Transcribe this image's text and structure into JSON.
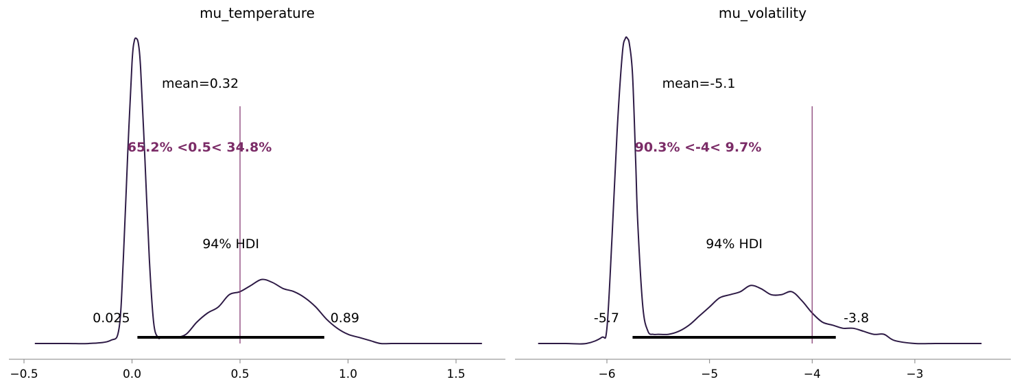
{
  "chart_data": [
    {
      "type": "density",
      "title": "mu_temperature",
      "xlim": [
        -0.5,
        1.65
      ],
      "ylim": [
        0,
        1
      ],
      "xticks": [
        -0.5,
        0.0,
        0.5,
        1.0,
        1.5
      ],
      "xtick_labels": [
        "−0.5",
        "0.0",
        "0.5",
        "1.0",
        "1.5"
      ],
      "mean_label": "mean=0.32",
      "hdi_label": "94% HDI",
      "hdi": [
        0.025,
        0.89
      ],
      "hdi_low_label": "0.025",
      "hdi_high_label": "0.89",
      "ref_val": 0.5,
      "ref_label": "65.2% <0.5< 34.8%",
      "line_color": "#2d1a45",
      "ref_color": "#7b2c67",
      "x": [
        -0.45,
        -0.3,
        -0.2,
        -0.1,
        -0.06,
        -0.04,
        -0.02,
        0.0,
        0.01,
        0.02,
        0.03,
        0.04,
        0.06,
        0.08,
        0.1,
        0.12,
        0.14,
        0.2,
        0.25,
        0.3,
        0.35,
        0.4,
        0.45,
        0.5,
        0.55,
        0.6,
        0.65,
        0.7,
        0.75,
        0.8,
        0.85,
        0.9,
        0.95,
        1.0,
        1.05,
        1.1,
        1.15,
        1.2,
        1.3,
        1.4,
        1.5,
        1.62
      ],
      "y": [
        0.0,
        0.0,
        0.0,
        0.01,
        0.05,
        0.28,
        0.62,
        0.92,
        0.99,
        1.0,
        0.98,
        0.9,
        0.6,
        0.28,
        0.07,
        0.02,
        0.02,
        0.02,
        0.03,
        0.07,
        0.1,
        0.12,
        0.16,
        0.17,
        0.19,
        0.21,
        0.2,
        0.18,
        0.17,
        0.15,
        0.12,
        0.08,
        0.05,
        0.03,
        0.02,
        0.01,
        0.0,
        0.0,
        0.0,
        0.0,
        0.0,
        0.0
      ]
    },
    {
      "type": "density",
      "title": "mu_volatility",
      "xlim": [
        -6.7,
        -2.2
      ],
      "ylim": [
        0,
        1
      ],
      "xticks": [
        -6,
        -5,
        -4,
        -3
      ],
      "xtick_labels": [
        "−6",
        "−5",
        "−4",
        "−3"
      ],
      "mean_label": "mean=-5.1",
      "hdi_label": "94% HDI",
      "hdi": [
        -5.75,
        -3.77
      ],
      "hdi_low_label": "-5.7",
      "hdi_high_label": "-3.8",
      "ref_val": -4,
      "ref_label": "90.3% <-4< 9.7%",
      "line_color": "#2d1a45",
      "ref_color": "#7b2c67",
      "x": [
        -6.67,
        -6.4,
        -6.2,
        -6.05,
        -6.0,
        -5.95,
        -5.9,
        -5.85,
        -5.82,
        -5.8,
        -5.78,
        -5.75,
        -5.72,
        -5.7,
        -5.65,
        -5.6,
        -5.55,
        -5.5,
        -5.4,
        -5.3,
        -5.2,
        -5.1,
        -5.0,
        -4.9,
        -4.8,
        -4.7,
        -4.6,
        -4.5,
        -4.4,
        -4.3,
        -4.2,
        -4.1,
        -4.0,
        -3.9,
        -3.8,
        -3.7,
        -3.6,
        -3.5,
        -3.4,
        -3.3,
        -3.2,
        -3.0,
        -2.8,
        -2.6,
        -2.35
      ],
      "y": [
        0.0,
        0.0,
        0.0,
        0.02,
        0.05,
        0.35,
        0.7,
        0.95,
        1.0,
        1.0,
        0.98,
        0.88,
        0.6,
        0.4,
        0.12,
        0.04,
        0.03,
        0.03,
        0.03,
        0.04,
        0.06,
        0.09,
        0.12,
        0.15,
        0.16,
        0.17,
        0.19,
        0.18,
        0.16,
        0.16,
        0.17,
        0.14,
        0.1,
        0.07,
        0.06,
        0.05,
        0.05,
        0.04,
        0.03,
        0.03,
        0.01,
        0.0,
        0.0,
        0.0,
        0.0
      ]
    }
  ]
}
